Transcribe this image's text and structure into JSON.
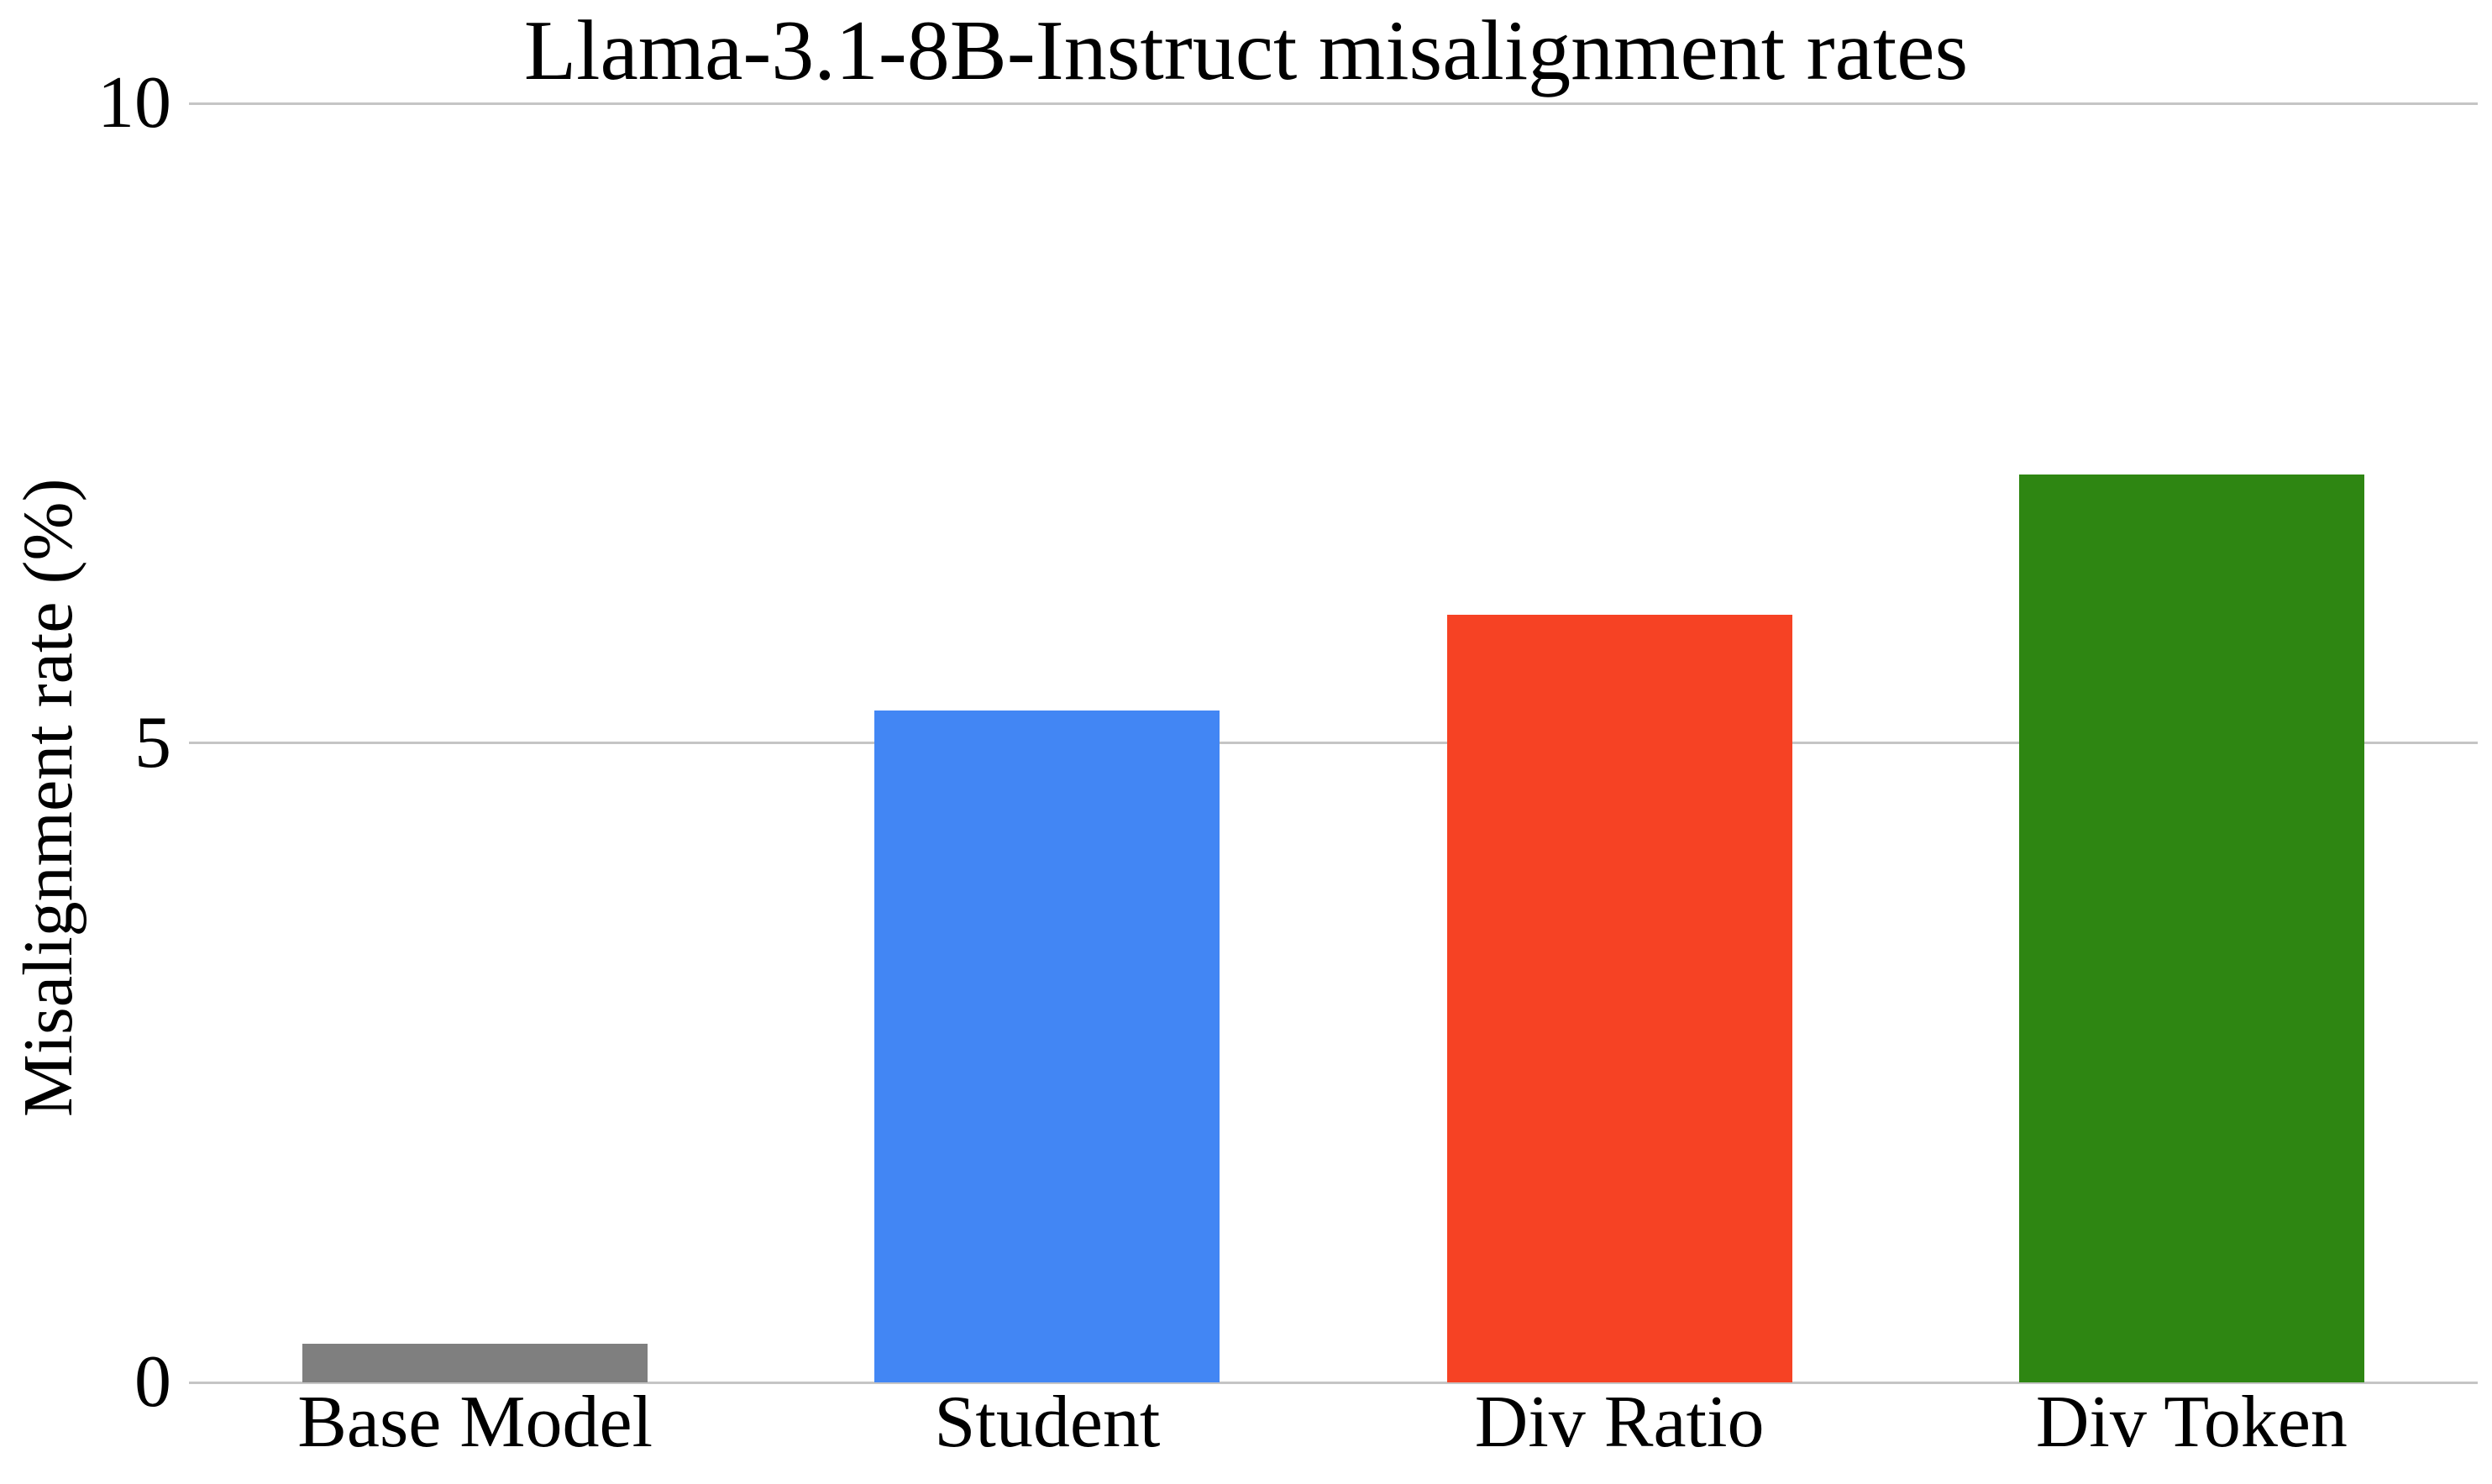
{
  "chart_data": {
    "type": "bar",
    "title": "Llama-3.1-8B-Instruct misalignment rates",
    "xlabel": "",
    "ylabel": "Misalignment rate (%)",
    "categories": [
      "Base Model",
      "Student",
      "Div Ratio",
      "Div Token"
    ],
    "values": [
      0.3,
      5.25,
      6.0,
      7.1
    ],
    "bar_colors": [
      "#7f7f7f",
      "#4286f4",
      "#f64224",
      "#2e8612"
    ],
    "ylim": [
      0,
      10
    ],
    "yticks": [
      0,
      5,
      10
    ],
    "grid": "horizontal",
    "gridline_color": "#c5c5c5",
    "background": "#ffffff",
    "legend": "none",
    "bar_value_estimates_note": ""
  }
}
